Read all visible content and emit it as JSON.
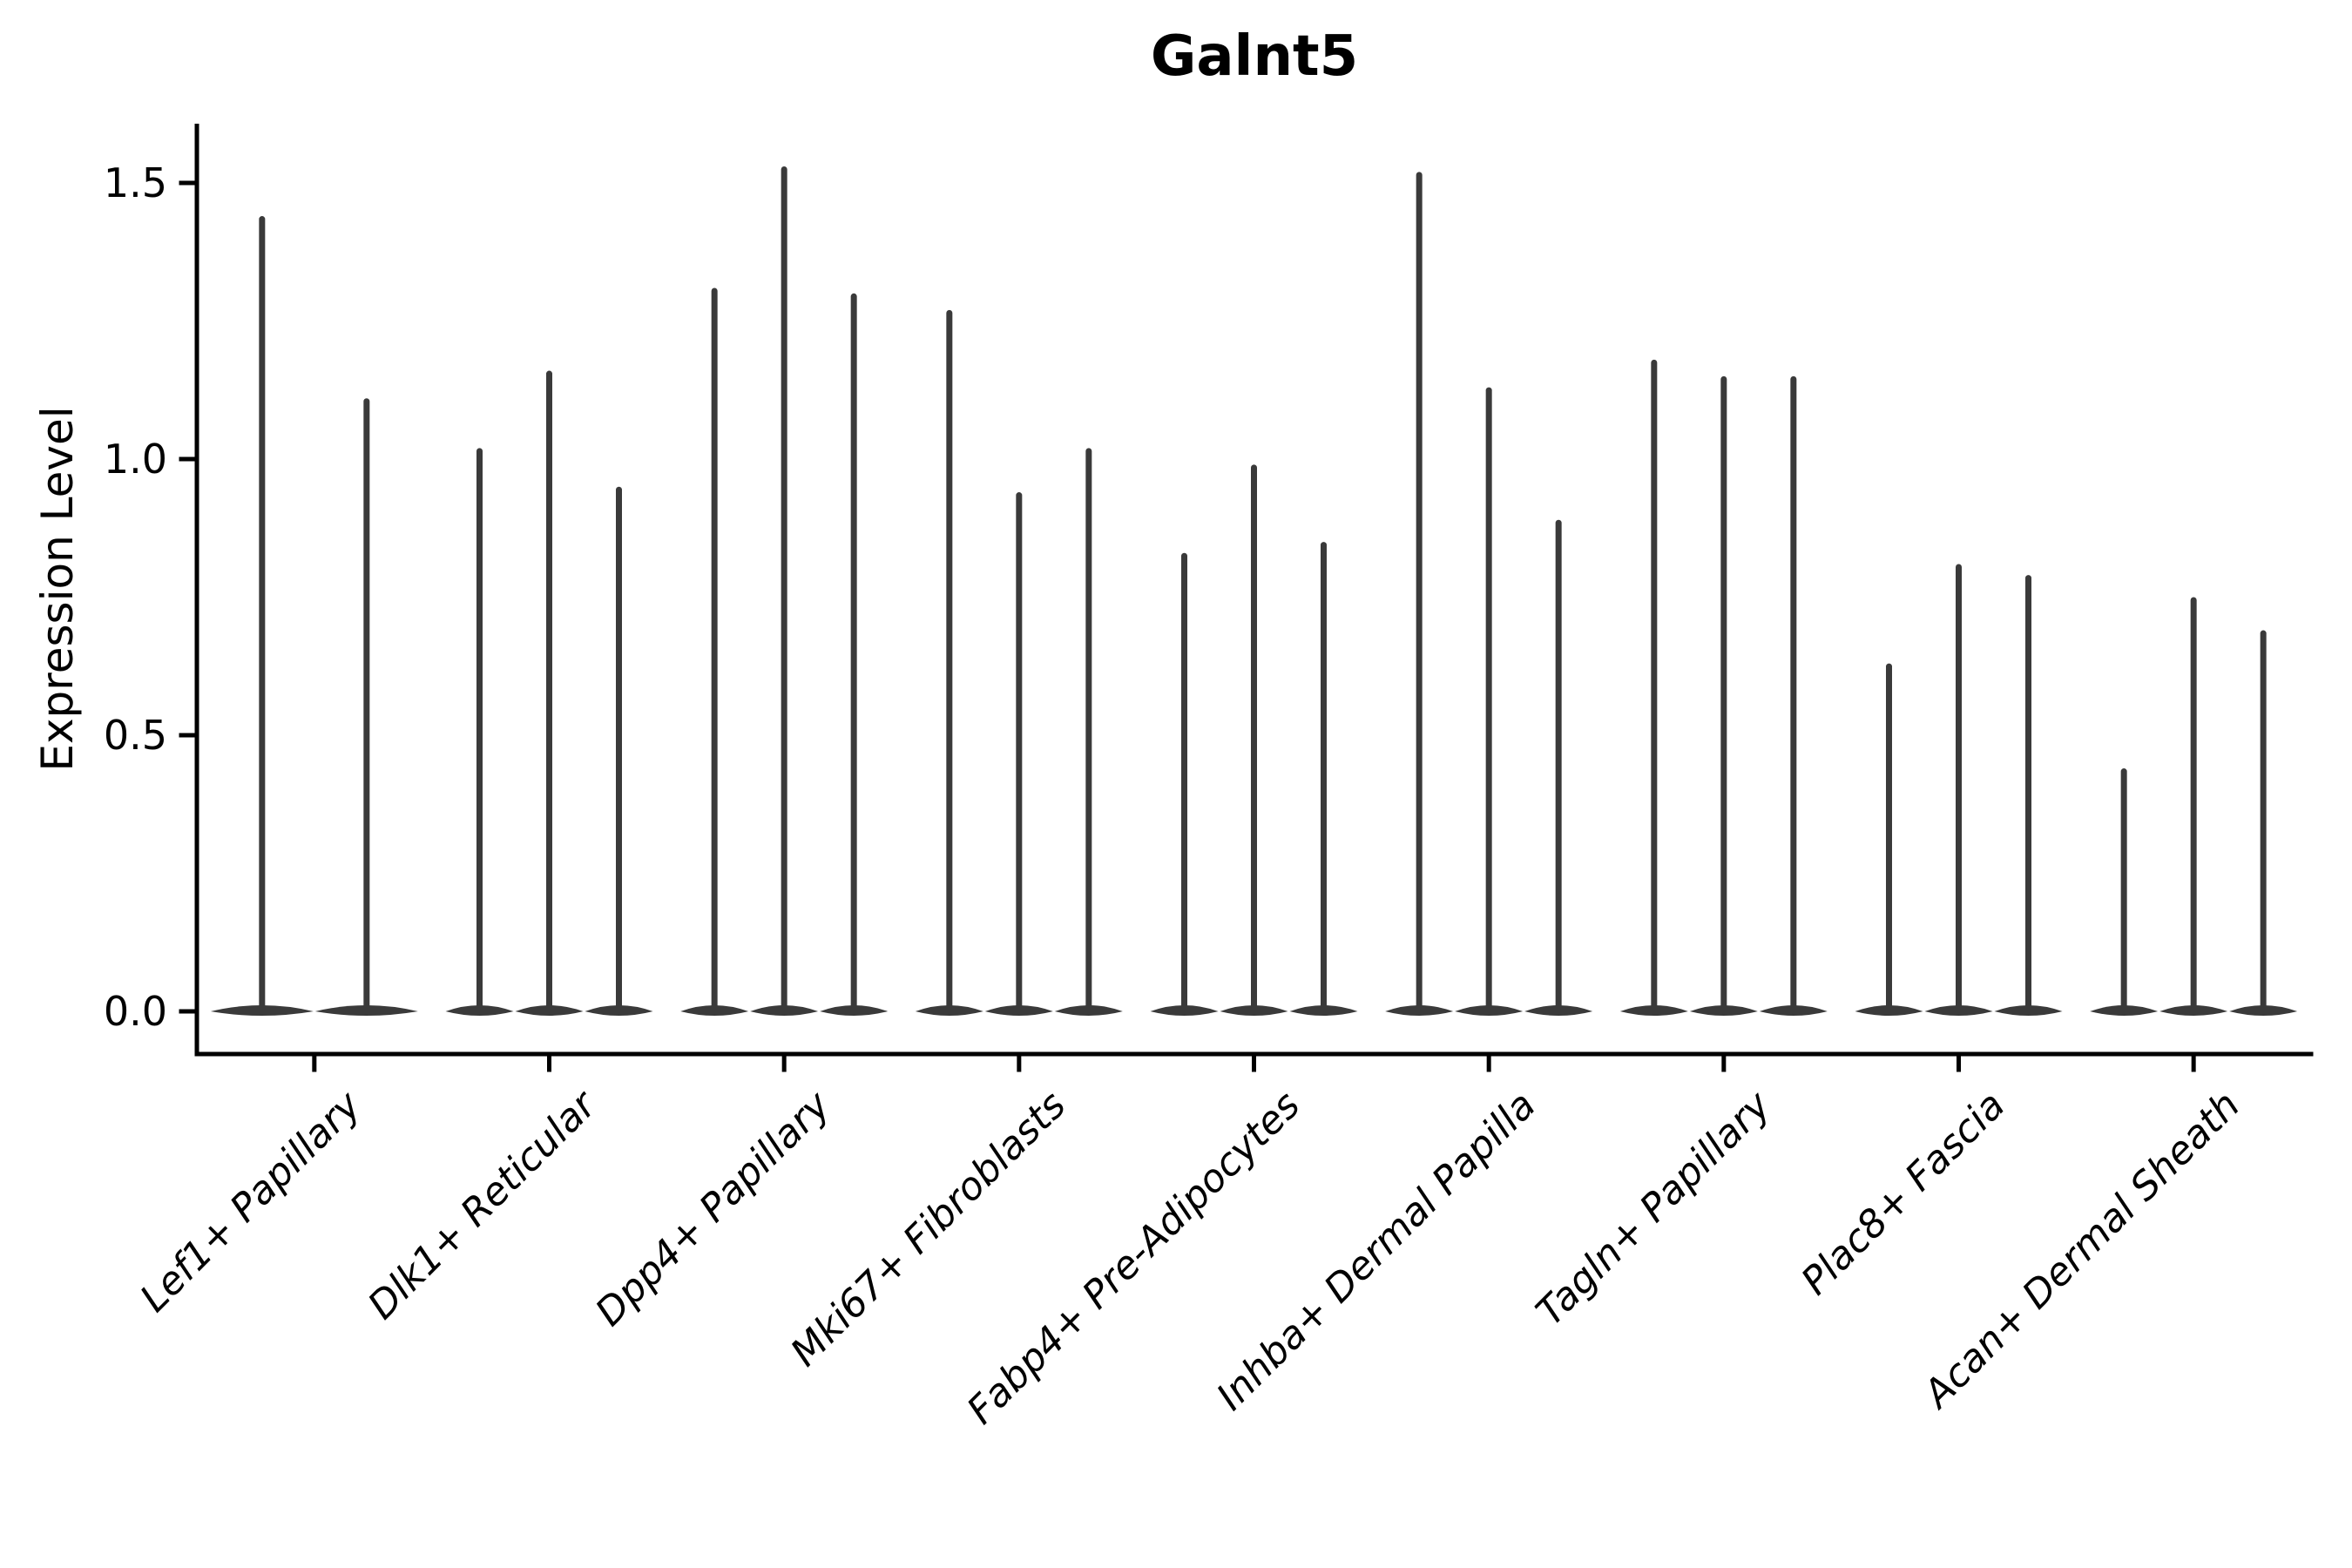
{
  "title": "Galnt5",
  "axes": {
    "ylabel": "Expression Level",
    "ytick_labels": [
      "0.0",
      "0.5",
      "1.0",
      "1.5"
    ],
    "axis_color": "#000000",
    "background_color": "#ffffff"
  },
  "chart_data": {
    "type": "violin",
    "title": "Galnt5",
    "subtitle": "",
    "xlabel": "",
    "ylabel": "Expression Level",
    "ylim": [
      -0.08,
      1.61
    ],
    "yticks": [
      0.0,
      0.5,
      1.0,
      1.5
    ],
    "ytick_labels": [
      "0.0",
      "0.5",
      "1.0",
      "1.5"
    ],
    "grid": false,
    "legend": "none",
    "xtick_label_rotation_deg": 45,
    "xtick_label_style": "italic",
    "violin_color": "#3a3a3a",
    "description": "Stacked thin violin plot of Galnt5 expression; each cluster shows 2-3 very thin violins whose mass sits at 0 with a narrow spike rising to the maximum expression value.",
    "categories": [
      "Lef1+ Papillary",
      "Dlk1+ Reticular",
      "Dpp4+ Papillary",
      "Mki67+ Fibroblasts",
      "Fabp4+ Pre-Adipocytes",
      "Inhba+ Dermal Papilla",
      "Tagln+ Papillary",
      "Plac8+ Fascia",
      "Acan+ Dermal Sheath"
    ],
    "series": [
      {
        "name": "Lef1+ Papillary",
        "violin_max_values": [
          1.44,
          1.11
        ]
      },
      {
        "name": "Dlk1+ Reticular",
        "violin_max_values": [
          1.02,
          1.16,
          0.95
        ]
      },
      {
        "name": "Dpp4+ Papillary",
        "violin_max_values": [
          1.31,
          1.53,
          1.3
        ]
      },
      {
        "name": "Mki67+ Fibroblasts",
        "violin_max_values": [
          1.27,
          0.94,
          1.02
        ]
      },
      {
        "name": "Fabp4+ Pre-Adipocytes",
        "violin_max_values": [
          0.83,
          0.99,
          0.85
        ]
      },
      {
        "name": "Inhba+ Dermal Papilla",
        "violin_max_values": [
          1.52,
          1.13,
          0.89
        ]
      },
      {
        "name": "Tagln+ Papillary",
        "violin_max_values": [
          1.18,
          1.15,
          1.15
        ]
      },
      {
        "name": "Plac8+ Fascia",
        "violin_max_values": [
          0.63,
          0.81,
          0.79
        ]
      },
      {
        "name": "Acan+ Dermal Sheath",
        "violin_max_values": [
          0.44,
          0.75,
          0.69
        ]
      }
    ]
  }
}
